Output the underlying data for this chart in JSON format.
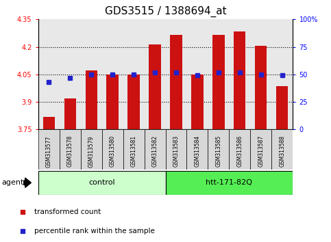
{
  "title": "GDS3515 / 1388694_at",
  "categories": [
    "GSM313577",
    "GSM313578",
    "GSM313579",
    "GSM313580",
    "GSM313581",
    "GSM313582",
    "GSM313583",
    "GSM313584",
    "GSM313585",
    "GSM313586",
    "GSM313587",
    "GSM313588"
  ],
  "bar_values": [
    3.82,
    3.92,
    4.07,
    4.05,
    4.05,
    4.215,
    4.265,
    4.05,
    4.265,
    4.285,
    4.205,
    3.985
  ],
  "percentile_values": [
    4.01,
    4.03,
    4.05,
    4.05,
    4.048,
    4.06,
    4.06,
    4.047,
    4.06,
    4.06,
    4.05,
    4.047
  ],
  "bar_color": "#cc1111",
  "dot_color": "#2222cc",
  "ylim_left": [
    3.75,
    4.35
  ],
  "ylim_right": [
    0,
    100
  ],
  "yticks_left": [
    3.75,
    3.9,
    4.05,
    4.2,
    4.35
  ],
  "yticks_right": [
    0,
    25,
    50,
    75,
    100
  ],
  "ytick_labels_left": [
    "3.75",
    "3.9",
    "4.05",
    "4.2",
    "4.35"
  ],
  "ytick_labels_right": [
    "0",
    "25",
    "50",
    "75",
    "100%"
  ],
  "grid_values": [
    3.9,
    4.05,
    4.2
  ],
  "group_colors": [
    "#ccffcc",
    "#55ee55"
  ],
  "agent_label": "agent",
  "legend_items": [
    {
      "label": "transformed count",
      "color": "#cc1111"
    },
    {
      "label": "percentile rank within the sample",
      "color": "#2222cc"
    }
  ],
  "bar_bottom": 3.75,
  "plot_bg": "#e8e8e8",
  "title_fontsize": 11,
  "tick_fontsize": 7
}
